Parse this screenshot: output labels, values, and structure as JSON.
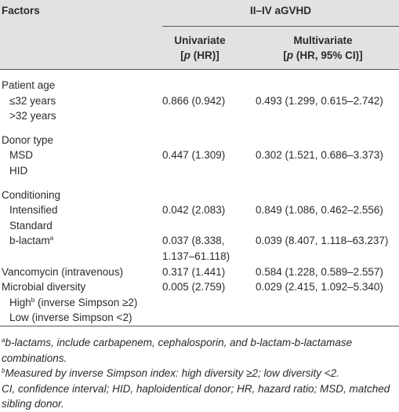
{
  "header": {
    "factors": "Factors",
    "group": "II–IV aGVHD",
    "univariate": {
      "title": "Univariate",
      "sub_before": "[",
      "sub_italic": "p",
      "sub_after": " (HR)]"
    },
    "multivariate": {
      "title": "Multivariate",
      "sub_before": "[",
      "sub_italic": "p",
      "sub_after": " (HR, 95% CI)]"
    }
  },
  "rows": [
    {
      "label": "Patient age",
      "sub": [
        {
          "label": "≤32 years",
          "univariate": "0.866 (0.942)",
          "multivariate": "0.493 (1.299, 0.615–2.742)"
        },
        {
          "label": ">32 years"
        }
      ]
    },
    {
      "label": "Donor type",
      "sub": [
        {
          "label": "MSD",
          "univariate": "0.447 (1.309)",
          "multivariate": "0.302 (1.521, 0.686–3.373)"
        },
        {
          "label": "HID"
        }
      ]
    },
    {
      "label": "Conditioning",
      "sub": [
        {
          "label": "Intensified",
          "univariate": "0.042 (2.083)",
          "multivariate": "0.849 (1.086, 0.462–2.556)"
        },
        {
          "label": "Standard"
        },
        {
          "label": "b-lactam",
          "sup": "a",
          "univariate": "0.037 (8.338, 1.137–61.118)",
          "multivariate": "0.039 (8.407, 1.118–63.237)"
        }
      ]
    },
    {
      "label": "Vancomycin (intravenous)",
      "univariate": "0.317 (1.441)",
      "multivariate": "0.584 (1.228, 0.589–2.557)"
    },
    {
      "label": "Microbial diversity",
      "univariate": "0.005 (2.759)",
      "multivariate": "0.029 (2.415, 1.092–5.340)",
      "sub": [
        {
          "label": "High",
          "sup": "b",
          "after_sup": " (inverse Simpson ≥2)"
        },
        {
          "label": "Low (inverse Simpson <2)"
        }
      ]
    }
  ],
  "footnotes": [
    {
      "mark": "a",
      "text": "b-lactams, include carbapenem, cephalosporin, and b-lactam-b-lactamase combinations."
    },
    {
      "mark": "b",
      "text": "Measured by inverse Simpson index: high diversity ≥2; low diversity <2."
    },
    {
      "text": "CI, confidence interval; HID, haploidentical donor; HR, hazard ratio; MSD, matched sibling donor."
    }
  ]
}
